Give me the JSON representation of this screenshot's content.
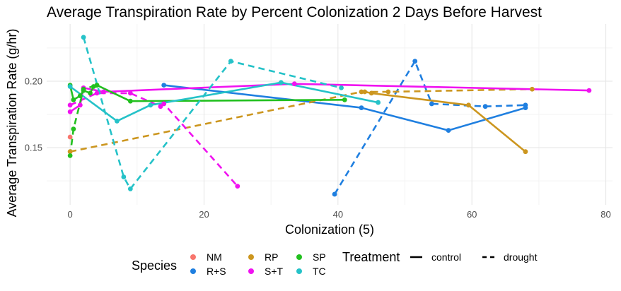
{
  "chart_data": {
    "type": "line",
    "title": "Average Transpiration Rate by Percent Colonization 2 Days Before Harvest",
    "xlabel": "Colonization (5)",
    "ylabel": "Average Transpiration Rate (g/hr)",
    "xlim": [
      -3.5,
      81
    ],
    "ylim": [
      0.107,
      0.243
    ],
    "x_ticks": [
      0,
      20,
      40,
      60,
      80
    ],
    "y_ticks": [
      0.15,
      0.2
    ],
    "y_tick_labels": [
      "0.15",
      "0.20"
    ],
    "grid": true,
    "legend_placement": "bottom",
    "legend": {
      "species_title": "Species",
      "species": [
        {
          "name": "NM",
          "color": "#F8766D"
        },
        {
          "name": "R+S",
          "color": "#1F7FE0"
        },
        {
          "name": "RP",
          "color": "#CC961F"
        },
        {
          "name": "S+T",
          "color": "#F012F0"
        },
        {
          "name": "SP",
          "color": "#22C01F"
        },
        {
          "name": "TC",
          "color": "#25C2C8"
        }
      ],
      "treatment_title": "Treatment",
      "treatments": [
        {
          "name": "control",
          "dash": "solid"
        },
        {
          "name": "drought",
          "dash": "dashed"
        }
      ]
    },
    "series": [
      {
        "species": "NM",
        "treatment": "control",
        "color": "#F8766D",
        "dash": "solid",
        "points": [
          [
            0,
            0.158
          ]
        ]
      },
      {
        "species": "R+S",
        "treatment": "control",
        "color": "#1F7FE0",
        "dash": "solid",
        "points": [
          [
            14,
            0.197
          ],
          [
            43.5,
            0.18
          ],
          [
            56.5,
            0.163
          ],
          [
            68,
            0.18
          ]
        ]
      },
      {
        "species": "R+S",
        "treatment": "drought",
        "color": "#1F7FE0",
        "dash": "dashed",
        "points": [
          [
            39.5,
            0.115
          ],
          [
            51.5,
            0.215
          ],
          [
            54,
            0.183
          ],
          [
            62,
            0.181
          ],
          [
            68,
            0.182
          ]
        ]
      },
      {
        "species": "RP",
        "treatment": "control",
        "color": "#CC961F",
        "dash": "solid",
        "points": [
          [
            44,
            0.192
          ],
          [
            45,
            0.191
          ],
          [
            59.5,
            0.182
          ],
          [
            68,
            0.147
          ]
        ]
      },
      {
        "species": "RP",
        "treatment": "drought",
        "color": "#CC961F",
        "dash": "dashed",
        "points": [
          [
            0,
            0.147
          ],
          [
            43.5,
            0.192
          ],
          [
            47.5,
            0.192
          ],
          [
            69,
            0.194
          ]
        ]
      },
      {
        "species": "S+T",
        "treatment": "control",
        "color": "#F012F0",
        "dash": "solid",
        "points": [
          [
            0,
            0.177
          ],
          [
            1.5,
            0.182
          ],
          [
            2,
            0.195
          ],
          [
            5,
            0.192
          ],
          [
            33.5,
            0.198
          ],
          [
            77.5,
            0.193
          ]
        ]
      },
      {
        "species": "S+T",
        "treatment": "drought",
        "color": "#F012F0",
        "dash": "dashed",
        "points": [
          [
            0,
            0.182
          ],
          [
            4,
            0.191
          ],
          [
            9,
            0.191
          ],
          [
            13.5,
            0.181
          ],
          [
            14,
            0.183
          ],
          [
            25,
            0.121
          ]
        ]
      },
      {
        "species": "SP",
        "treatment": "control",
        "color": "#22C01F",
        "dash": "solid",
        "points": [
          [
            0,
            0.197
          ],
          [
            0.5,
            0.186
          ],
          [
            1.5,
            0.189
          ],
          [
            2,
            0.193
          ],
          [
            3,
            0.191
          ],
          [
            3.5,
            0.196
          ],
          [
            4,
            0.197
          ],
          [
            9,
            0.185
          ],
          [
            41,
            0.186
          ]
        ]
      },
      {
        "species": "SP",
        "treatment": "drought",
        "color": "#22C01F",
        "dash": "dashed",
        "points": [
          [
            0,
            0.144
          ],
          [
            0.5,
            0.164
          ],
          [
            2,
            0.194
          ],
          [
            4,
            0.197
          ]
        ]
      },
      {
        "species": "TC",
        "treatment": "control",
        "color": "#25C2C8",
        "dash": "solid",
        "points": [
          [
            0,
            0.196
          ],
          [
            7,
            0.17
          ],
          [
            12,
            0.182
          ],
          [
            31.5,
            0.199
          ],
          [
            46,
            0.184
          ]
        ]
      },
      {
        "species": "TC",
        "treatment": "drought",
        "color": "#25C2C8",
        "dash": "dashed",
        "points": [
          [
            2,
            0.233
          ],
          [
            8,
            0.128
          ],
          [
            9,
            0.119
          ],
          [
            24,
            0.215
          ],
          [
            40.5,
            0.195
          ]
        ]
      }
    ]
  }
}
